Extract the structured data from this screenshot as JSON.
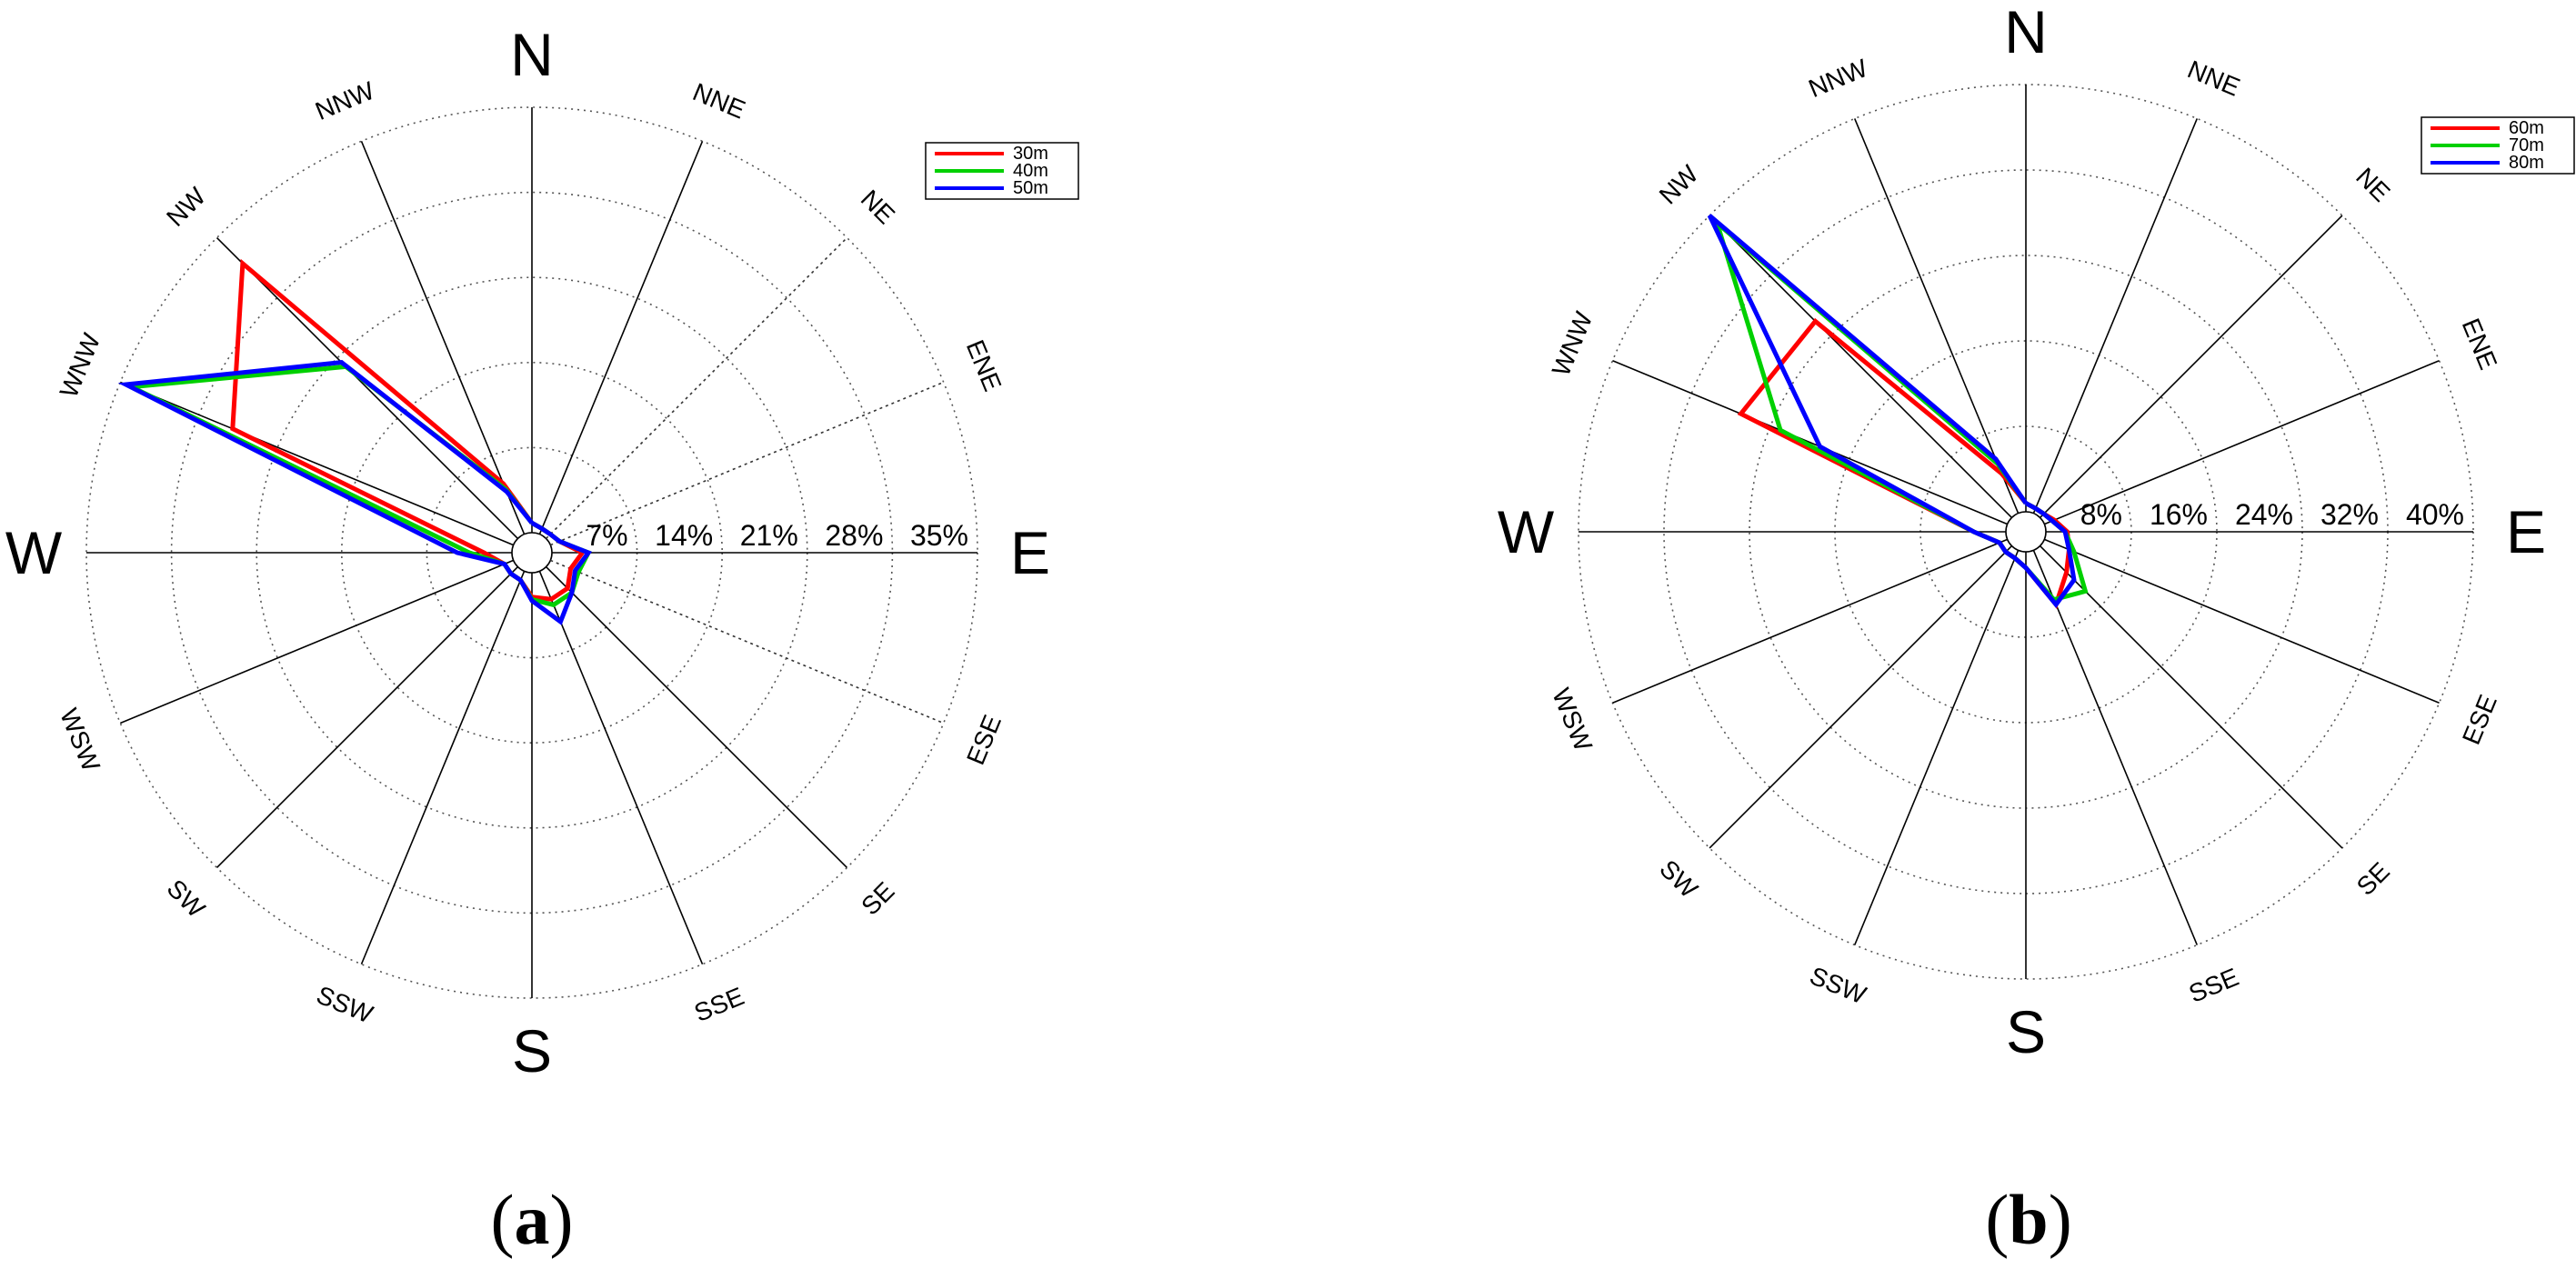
{
  "chart_data": [
    {
      "type": "radar",
      "panel_label": "a",
      "directions": [
        "N",
        "NNE",
        "NE",
        "ENE",
        "E",
        "ESE",
        "SE",
        "SSE",
        "S",
        "SSW",
        "SW",
        "WSW",
        "W",
        "WNW",
        "NW",
        "NNW"
      ],
      "rmax": 35,
      "ring_labels": [
        "7%",
        "14%",
        "21%",
        "28%",
        "35%"
      ],
      "grid": true,
      "legend": {
        "position": "top-right",
        "entries": [
          "30m",
          "40m",
          "50m"
        ]
      },
      "series": [
        {
          "name": "30m",
          "color": "#ff0000",
          "values": [
            0.8,
            0.5,
            0.5,
            0.8,
            2.5,
            1.8,
            2.5,
            2.5,
            2.0,
            0.8,
            0.8,
            0.8,
            2.3,
            25.0,
            32.0,
            4.5
          ]
        },
        {
          "name": "40m",
          "color": "#00d000",
          "values": [
            0.8,
            0.5,
            0.5,
            0.8,
            3.0,
            2.5,
            3.0,
            3.0,
            2.2,
            0.8,
            0.8,
            0.8,
            3.5,
            34.0,
            20.0,
            4.0
          ]
        },
        {
          "name": "50m",
          "color": "#0000ff",
          "values": [
            0.8,
            0.5,
            0.5,
            0.8,
            3.0,
            2.2,
            3.0,
            4.5,
            2.3,
            0.8,
            0.8,
            0.8,
            4.5,
            34.5,
            20.5,
            3.8
          ]
        }
      ]
    },
    {
      "type": "radar",
      "panel_label": "b",
      "directions": [
        "N",
        "NNE",
        "NE",
        "ENE",
        "E",
        "ESE",
        "SE",
        "SSE",
        "S",
        "SSW",
        "SW",
        "WSW",
        "W",
        "WNW",
        "NW",
        "NNW"
      ],
      "rmax": 40,
      "ring_labels": [
        "8%",
        "16%",
        "24%",
        "32%",
        "40%"
      ],
      "grid": true,
      "legend": {
        "position": "top-right",
        "entries": [
          "60m",
          "70m",
          "80m"
        ]
      },
      "series": [
        {
          "name": "60m",
          "color": "#ff0000",
          "values": [
            0.8,
            0.5,
            0.5,
            1.0,
            2.0,
            2.5,
            3.5,
            5.5,
            1.5,
            0.8,
            0.8,
            0.8,
            3.0,
            27.0,
            26.0,
            4.0
          ]
        },
        {
          "name": "70m",
          "color": "#00d000",
          "values": [
            0.8,
            0.5,
            0.5,
            0.8,
            1.8,
            3.0,
            6.0,
            5.0,
            1.5,
            0.8,
            0.8,
            0.8,
            3.0,
            23.0,
            39.0,
            5.0
          ]
        },
        {
          "name": "80m",
          "color": "#0000ff",
          "values": [
            0.8,
            0.5,
            0.5,
            0.8,
            1.8,
            2.5,
            4.5,
            5.5,
            1.5,
            0.8,
            0.8,
            0.8,
            3.0,
            19.0,
            40.0,
            5.5
          ]
        }
      ]
    }
  ]
}
